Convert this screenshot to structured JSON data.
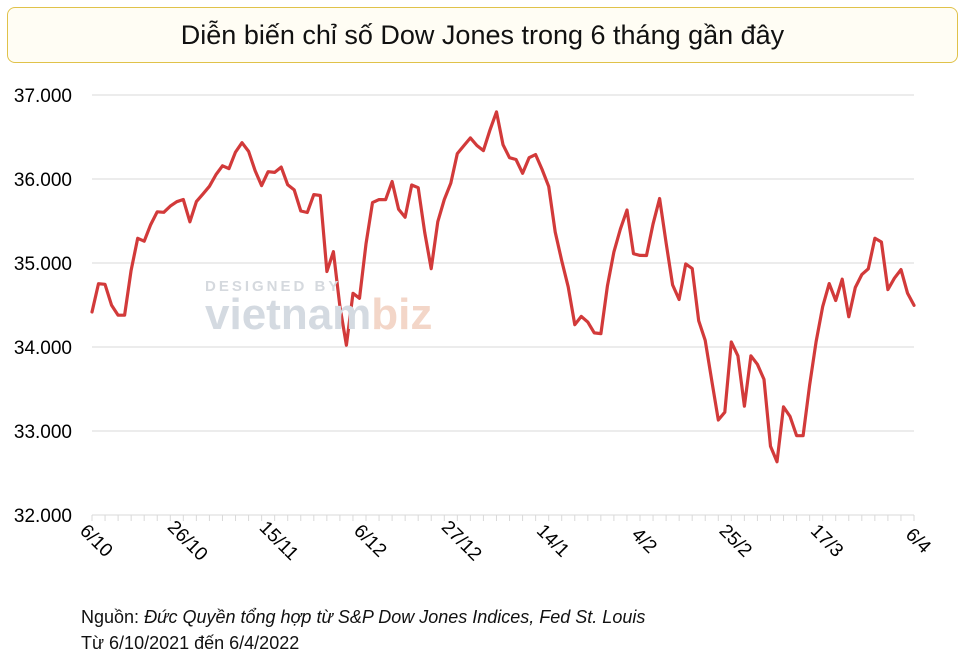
{
  "title": "Diễn biến chỉ số Dow Jones trong 6 tháng gần đây",
  "source": {
    "label": "Nguồn:",
    "body": "Đức Quyền tổng hợp từ S&P Dow Jones Indices, Fed St. Louis",
    "range": "Từ 6/10/2021 đến 6/4/2022"
  },
  "watermark": {
    "top": "DESIGNED BY",
    "brand_a": "vietnam",
    "brand_b": "biz"
  },
  "colors": {
    "line": "#d23a3a",
    "grid": "#d9d9d9",
    "title_border": "#e0c24a"
  },
  "chart_data": {
    "type": "line",
    "title": "Diễn biến chỉ số Dow Jones trong 6 tháng gần đây",
    "xlabel": "",
    "ylabel": "",
    "ylim": [
      32000,
      37000
    ],
    "y_ticks": [
      32000,
      33000,
      34000,
      35000,
      36000,
      37000
    ],
    "y_tick_labels": [
      "32.000",
      "33.000",
      "34.000",
      "35.000",
      "36.000",
      "37.000"
    ],
    "x_tick_labels": [
      "6/10",
      "26/10",
      "15/11",
      "6/12",
      "27/12",
      "14/1",
      "4/2",
      "25/2",
      "17/3",
      "6/4"
    ],
    "x_tick_index": [
      0,
      14,
      28,
      42,
      56,
      70,
      84,
      98,
      112,
      126
    ],
    "series": [
      {
        "name": "Dow Jones",
        "values": [
          34417,
          34754,
          34746,
          34496,
          34378,
          34380,
          34912,
          35294,
          35259,
          35457,
          35609,
          35603,
          35677,
          35730,
          35756,
          35491,
          35731,
          35820,
          35913,
          36052,
          36157,
          36124,
          36320,
          36432,
          36328,
          36100,
          35921,
          36087,
          36079,
          36142,
          35931,
          35870,
          35619,
          35601,
          35814,
          35804,
          34899,
          35135,
          34483,
          34022,
          34639,
          34580,
          35227,
          35719,
          35755,
          35754,
          35970,
          35640,
          35545,
          35928,
          35897,
          35365,
          34932,
          35492,
          35756,
          35950,
          36302,
          36398,
          36489,
          36399,
          36338,
          36585,
          36799,
          36408,
          36253,
          36232,
          36068,
          36253,
          36290,
          36113,
          35912,
          35369,
          35028,
          34716,
          34265,
          34364,
          34297,
          34168,
          34160,
          34725,
          35132,
          35405,
          35631,
          35111,
          35090,
          35089,
          35462,
          35768,
          35241,
          34739,
          34566,
          34989,
          34935,
          34312,
          34079,
          33597,
          33131,
          33224,
          34059,
          33895,
          33295,
          33895,
          33794,
          33614,
          32818,
          32633,
          33287,
          33174,
          32945,
          32944,
          33544,
          34063,
          34481,
          34755,
          34553,
          34807,
          34359,
          34708,
          34862,
          34931,
          35295,
          35250,
          34683,
          34819,
          34922,
          34642,
          34497
        ]
      }
    ]
  }
}
